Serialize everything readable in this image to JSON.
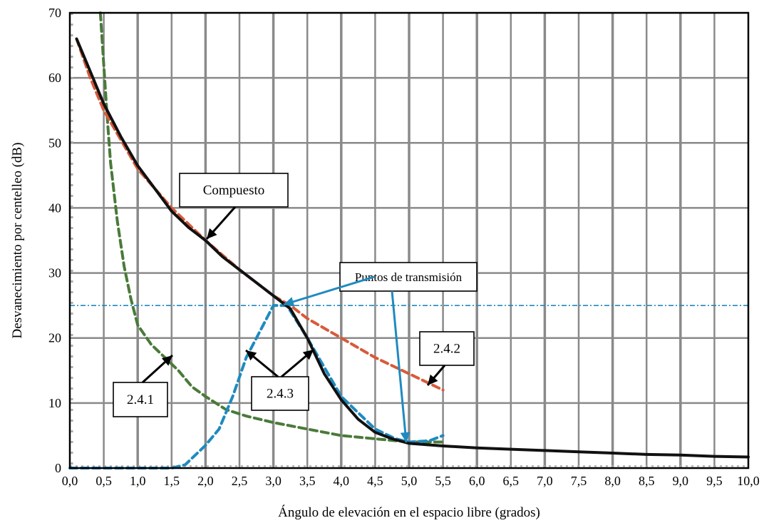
{
  "chart_data": {
    "type": "line",
    "xlabel": "Ángulo de elevación en el espacio libre (grados)",
    "ylabel": "Desvanecimiento por centelleo (dB)",
    "xlim": [
      0,
      10
    ],
    "ylim": [
      0,
      70
    ],
    "x_ticks": [
      "0,0",
      "0,5",
      "1,0",
      "1,5",
      "2,0",
      "2,5",
      "3,0",
      "3,5",
      "4,0",
      "4,5",
      "5,0",
      "5,5",
      "6,0",
      "6,5",
      "7,0",
      "7,5",
      "8,0",
      "8,5",
      "9,0",
      "9,5",
      "10,0"
    ],
    "y_ticks": [
      "0",
      "10",
      "20",
      "30",
      "40",
      "50",
      "60",
      "70"
    ],
    "grid": true,
    "threshold_line": {
      "y": 25,
      "color": "#1f8ac0"
    },
    "series": [
      {
        "name": "2.4.1",
        "color": "#4a7a3a",
        "style": "dashed",
        "x": [
          0.45,
          0.5,
          0.55,
          0.6,
          0.7,
          0.8,
          0.9,
          1.0,
          1.2,
          1.4,
          1.6,
          1.8,
          2.0,
          2.3,
          2.6,
          3.0,
          3.5,
          4.0,
          4.5,
          5.0,
          5.5
        ],
        "y": [
          70,
          62,
          54,
          47,
          38,
          31,
          26,
          22,
          19,
          17,
          15,
          12.5,
          11,
          9,
          8,
          7,
          6,
          5,
          4.5,
          4,
          4
        ]
      },
      {
        "name": "2.4.2",
        "color": "#d85a3a",
        "style": "dashed",
        "x": [
          0.1,
          0.3,
          0.5,
          1.0,
          1.5,
          2.0,
          2.5,
          3.0,
          3.25,
          3.5,
          4.0,
          4.5,
          5.0,
          5.5
        ],
        "y": [
          66,
          60,
          55,
          46,
          40,
          35,
          30.5,
          26.5,
          25,
          23,
          20,
          17,
          14.5,
          12
        ]
      },
      {
        "name": "2.4.3",
        "color": "#1f8ac0",
        "style": "dashed",
        "x": [
          0,
          0.5,
          1.0,
          1.5,
          1.7,
          1.9,
          2.0,
          2.2,
          2.4,
          2.6,
          2.8,
          3.0,
          3.2,
          3.5,
          4.0,
          4.5,
          4.8,
          5.0,
          5.3,
          5.5
        ],
        "y": [
          0,
          0,
          0,
          0,
          0.5,
          2.5,
          3.5,
          6,
          11,
          17,
          21,
          25,
          25,
          20,
          11,
          6,
          4.5,
          4,
          4.2,
          5
        ]
      },
      {
        "name": "Compuesto",
        "color": "#111111",
        "style": "solid",
        "x": [
          0.1,
          0.3,
          0.5,
          0.75,
          1.0,
          1.25,
          1.5,
          1.75,
          2.0,
          2.25,
          2.5,
          2.75,
          3.0,
          3.25,
          3.5,
          3.75,
          4.0,
          4.25,
          4.5,
          4.75,
          5.0,
          5.5,
          6.0,
          6.5,
          7.0,
          7.5,
          8.0,
          8.5,
          9.0,
          9.5,
          10.0
        ],
        "y": [
          66,
          61,
          56,
          51,
          46.5,
          43,
          39.5,
          37,
          35,
          32.5,
          30.5,
          28.5,
          26.5,
          24.5,
          20,
          14.5,
          10.5,
          7.5,
          5.5,
          4.5,
          3.8,
          3.4,
          3.1,
          2.9,
          2.7,
          2.5,
          2.3,
          2.1,
          2.0,
          1.8,
          1.7
        ]
      }
    ],
    "annotations": [
      {
        "label": "Compuesto",
        "box": "rect"
      },
      {
        "label": "Puntos de transmisión",
        "box": "rect"
      },
      {
        "label": "2.4.1",
        "box": "rect"
      },
      {
        "label": "2.4.2",
        "box": "rect"
      },
      {
        "label": "2.4.3",
        "box": "rect"
      }
    ]
  }
}
